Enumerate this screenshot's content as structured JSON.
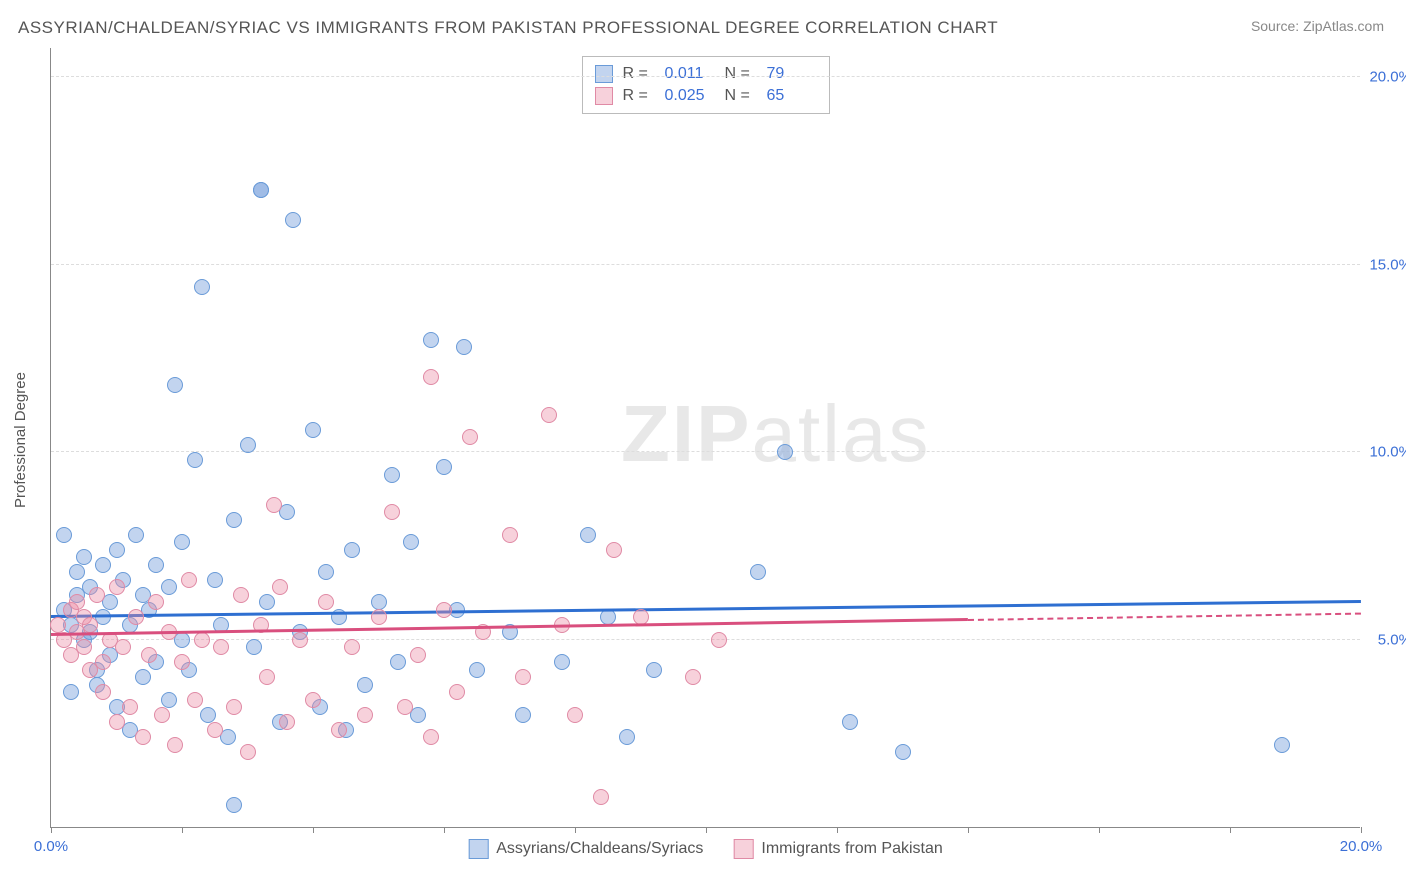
{
  "title": "ASSYRIAN/CHALDEAN/SYRIAC VS IMMIGRANTS FROM PAKISTAN PROFESSIONAL DEGREE CORRELATION CHART",
  "source": "Source: ZipAtlas.com",
  "y_axis_label": "Professional Degree",
  "watermark_a": "ZIP",
  "watermark_b": "atlas",
  "chart": {
    "type": "scatter",
    "xlim": [
      0,
      20
    ],
    "ylim": [
      0,
      20.8
    ],
    "x_ticks": [
      0,
      2,
      4,
      6,
      8,
      10,
      12,
      14,
      16,
      18,
      20
    ],
    "x_tick_labels": {
      "0": "0.0%",
      "20": "20.0%"
    },
    "y_grid": [
      5,
      10,
      15,
      20
    ],
    "y_tick_labels": {
      "5": "5.0%",
      "10": "10.0%",
      "15": "15.0%",
      "20": "20.0%"
    },
    "background": "#ffffff",
    "grid_color": "#dddddd",
    "axis_color": "#888888",
    "label_color": "#3b6fd6",
    "marker_radius": 8,
    "series": [
      {
        "name": "Assyrians/Chaldeans/Syriacs",
        "fill": "rgba(120,160,220,0.45)",
        "stroke": "#6a9bd8",
        "trend_color": "#2e6fd1",
        "r_value": "0.011",
        "n_value": "79",
        "trend": {
          "x1": 0,
          "y1": 5.6,
          "x2": 20,
          "y2": 6.0,
          "dash_from": 20
        },
        "points": [
          [
            0.2,
            5.8
          ],
          [
            0.2,
            7.8
          ],
          [
            0.3,
            5.4
          ],
          [
            0.3,
            3.6
          ],
          [
            0.4,
            6.2
          ],
          [
            0.4,
            6.8
          ],
          [
            0.5,
            5.0
          ],
          [
            0.5,
            7.2
          ],
          [
            0.6,
            6.4
          ],
          [
            0.6,
            5.2
          ],
          [
            0.7,
            4.2
          ],
          [
            0.7,
            3.8
          ],
          [
            0.8,
            7.0
          ],
          [
            0.8,
            5.6
          ],
          [
            0.9,
            4.6
          ],
          [
            0.9,
            6.0
          ],
          [
            1.0,
            7.4
          ],
          [
            1.0,
            3.2
          ],
          [
            1.1,
            6.6
          ],
          [
            1.2,
            5.4
          ],
          [
            1.2,
            2.6
          ],
          [
            1.3,
            7.8
          ],
          [
            1.4,
            4.0
          ],
          [
            1.4,
            6.2
          ],
          [
            1.5,
            5.8
          ],
          [
            1.6,
            4.4
          ],
          [
            1.6,
            7.0
          ],
          [
            1.8,
            3.4
          ],
          [
            1.8,
            6.4
          ],
          [
            1.9,
            11.8
          ],
          [
            2.0,
            5.0
          ],
          [
            2.0,
            7.6
          ],
          [
            2.1,
            4.2
          ],
          [
            2.2,
            9.8
          ],
          [
            2.3,
            14.4
          ],
          [
            2.4,
            3.0
          ],
          [
            2.5,
            6.6
          ],
          [
            2.6,
            5.4
          ],
          [
            2.7,
            2.4
          ],
          [
            2.8,
            8.2
          ],
          [
            3.0,
            10.2
          ],
          [
            3.1,
            4.8
          ],
          [
            3.2,
            17.0
          ],
          [
            3.3,
            6.0
          ],
          [
            3.5,
            2.8
          ],
          [
            3.6,
            8.4
          ],
          [
            3.7,
            16.2
          ],
          [
            3.8,
            5.2
          ],
          [
            4.0,
            10.6
          ],
          [
            4.1,
            3.2
          ],
          [
            4.2,
            6.8
          ],
          [
            4.4,
            5.6
          ],
          [
            4.5,
            2.6
          ],
          [
            4.6,
            7.4
          ],
          [
            4.8,
            3.8
          ],
          [
            5.0,
            6.0
          ],
          [
            5.2,
            9.4
          ],
          [
            5.3,
            4.4
          ],
          [
            5.5,
            7.6
          ],
          [
            5.6,
            3.0
          ],
          [
            5.8,
            13.0
          ],
          [
            6.0,
            9.6
          ],
          [
            6.2,
            5.8
          ],
          [
            6.3,
            12.8
          ],
          [
            6.5,
            4.2
          ],
          [
            7.0,
            5.2
          ],
          [
            7.2,
            3.0
          ],
          [
            7.8,
            4.4
          ],
          [
            8.2,
            7.8
          ],
          [
            8.5,
            5.6
          ],
          [
            8.8,
            2.4
          ],
          [
            9.2,
            4.2
          ],
          [
            10.8,
            6.8
          ],
          [
            11.2,
            10.0
          ],
          [
            12.2,
            2.8
          ],
          [
            13.0,
            2.0
          ],
          [
            18.8,
            2.2
          ],
          [
            2.8,
            0.6
          ],
          [
            3.2,
            17.0
          ]
        ]
      },
      {
        "name": "Immigrants from Pakistan",
        "fill": "rgba(235,140,165,0.40)",
        "stroke": "#e08aa5",
        "trend_color": "#d94f7e",
        "r_value": "0.025",
        "n_value": "65",
        "trend": {
          "x1": 0,
          "y1": 5.1,
          "x2": 14,
          "y2": 5.5,
          "dash_from": 14
        },
        "points": [
          [
            0.1,
            5.4
          ],
          [
            0.2,
            5.0
          ],
          [
            0.3,
            5.8
          ],
          [
            0.3,
            4.6
          ],
          [
            0.4,
            6.0
          ],
          [
            0.4,
            5.2
          ],
          [
            0.5,
            4.8
          ],
          [
            0.5,
            5.6
          ],
          [
            0.6,
            4.2
          ],
          [
            0.6,
            5.4
          ],
          [
            0.7,
            6.2
          ],
          [
            0.8,
            4.4
          ],
          [
            0.8,
            3.6
          ],
          [
            0.9,
            5.0
          ],
          [
            1.0,
            6.4
          ],
          [
            1.0,
            2.8
          ],
          [
            1.1,
            4.8
          ],
          [
            1.2,
            3.2
          ],
          [
            1.3,
            5.6
          ],
          [
            1.4,
            2.4
          ],
          [
            1.5,
            4.6
          ],
          [
            1.6,
            6.0
          ],
          [
            1.7,
            3.0
          ],
          [
            1.8,
            5.2
          ],
          [
            1.9,
            2.2
          ],
          [
            2.0,
            4.4
          ],
          [
            2.1,
            6.6
          ],
          [
            2.2,
            3.4
          ],
          [
            2.3,
            5.0
          ],
          [
            2.5,
            2.6
          ],
          [
            2.6,
            4.8
          ],
          [
            2.8,
            3.2
          ],
          [
            2.9,
            6.2
          ],
          [
            3.0,
            2.0
          ],
          [
            3.2,
            5.4
          ],
          [
            3.3,
            4.0
          ],
          [
            3.4,
            8.6
          ],
          [
            3.5,
            6.4
          ],
          [
            3.6,
            2.8
          ],
          [
            3.8,
            5.0
          ],
          [
            4.0,
            3.4
          ],
          [
            4.2,
            6.0
          ],
          [
            4.4,
            2.6
          ],
          [
            4.6,
            4.8
          ],
          [
            4.8,
            3.0
          ],
          [
            5.0,
            5.6
          ],
          [
            5.2,
            8.4
          ],
          [
            5.4,
            3.2
          ],
          [
            5.6,
            4.6
          ],
          [
            5.8,
            2.4
          ],
          [
            5.8,
            12.0
          ],
          [
            6.0,
            5.8
          ],
          [
            6.2,
            3.6
          ],
          [
            6.4,
            10.4
          ],
          [
            6.6,
            5.2
          ],
          [
            7.0,
            7.8
          ],
          [
            7.2,
            4.0
          ],
          [
            7.6,
            11.0
          ],
          [
            7.8,
            5.4
          ],
          [
            8.0,
            3.0
          ],
          [
            8.4,
            0.8
          ],
          [
            8.6,
            7.4
          ],
          [
            9.0,
            5.6
          ],
          [
            9.8,
            4.0
          ],
          [
            10.2,
            5.0
          ]
        ]
      }
    ]
  },
  "legend": {
    "series1_label": "Assyrians/Chaldeans/Syriacs",
    "series2_label": "Immigrants from Pakistan"
  },
  "stats_labels": {
    "r": "R  =",
    "n": "N  ="
  }
}
